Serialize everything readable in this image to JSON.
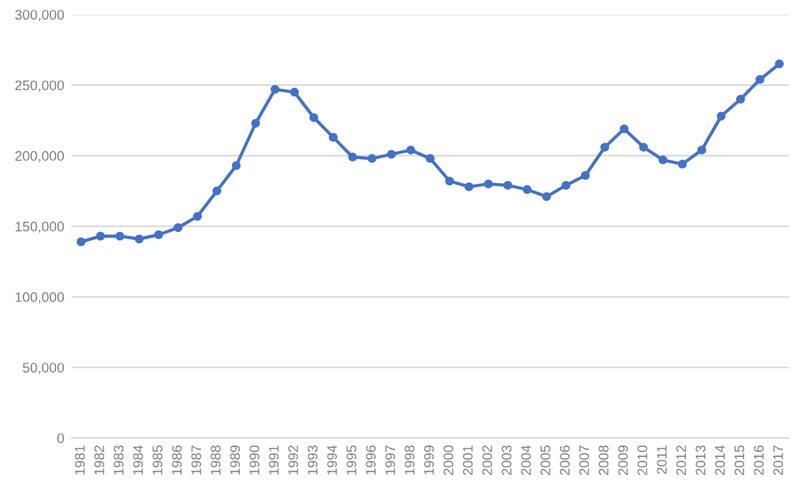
{
  "chart_data": {
    "type": "line",
    "categories": [
      "1981",
      "1982",
      "1983",
      "1984",
      "1985",
      "1986",
      "1987",
      "1988",
      "1989",
      "1990",
      "1991",
      "1992",
      "1993",
      "1994",
      "1995",
      "1996",
      "1997",
      "1998",
      "1999",
      "2000",
      "2001",
      "2002",
      "2003",
      "2004",
      "2005",
      "2006",
      "2007",
      "2008",
      "2009",
      "2010",
      "2011",
      "2012",
      "2013",
      "2014",
      "2015",
      "2016",
      "2017"
    ],
    "series": [
      {
        "color": "#4472c4",
        "values": [
          139000,
          143000,
          143000,
          141000,
          144000,
          149000,
          157000,
          175000,
          193000,
          223000,
          247000,
          245000,
          227000,
          213000,
          199000,
          198000,
          201000,
          204000,
          198000,
          182000,
          178000,
          180000,
          179000,
          176000,
          171000,
          179000,
          186000,
          206000,
          219000,
          206000,
          197000,
          194000,
          204000,
          228000,
          240000,
          254000,
          265000
        ]
      }
    ],
    "ylim": [
      0,
      300000
    ],
    "yticks": [
      {
        "value": 0,
        "label": "0"
      },
      {
        "value": 50000,
        "label": "50,000"
      },
      {
        "value": 100000,
        "label": "100,000"
      },
      {
        "value": 150000,
        "label": "150,000"
      },
      {
        "value": 200000,
        "label": "200,000"
      },
      {
        "value": 250000,
        "label": "250,000"
      },
      {
        "value": 300000,
        "label": "300,000"
      }
    ],
    "grid": "y",
    "marker": "circle",
    "line_style": "solid",
    "legend": false
  }
}
